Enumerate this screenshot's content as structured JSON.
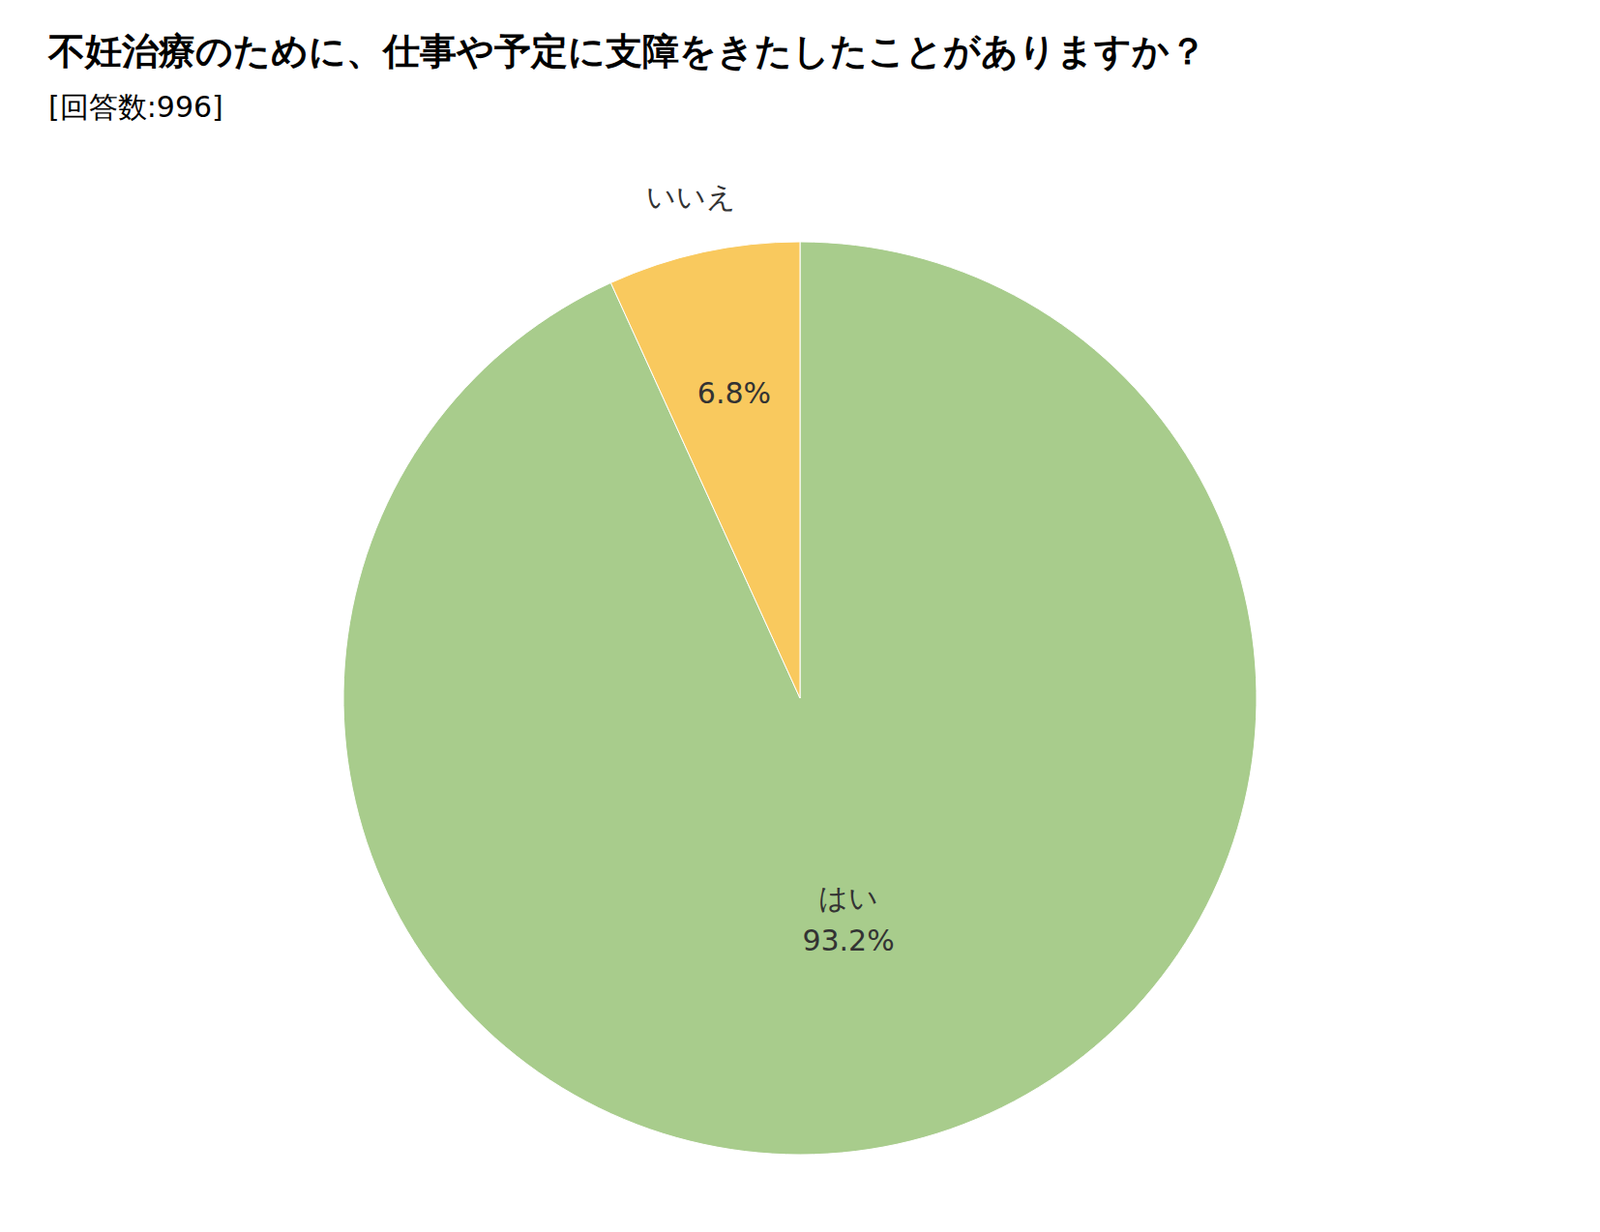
{
  "chart_data": {
    "type": "pie",
    "title": "不妊治療のために、仕事や予定に支障をきたしたことがありますか？",
    "subtitle": "[回答数:996]",
    "categories": [
      "はい",
      "いいえ"
    ],
    "values": [
      93.2,
      6.8
    ],
    "value_labels": [
      "93.2%",
      "6.8%"
    ],
    "colors": [
      "#a8cc8c",
      "#f9c95e"
    ],
    "data_labels": true
  }
}
